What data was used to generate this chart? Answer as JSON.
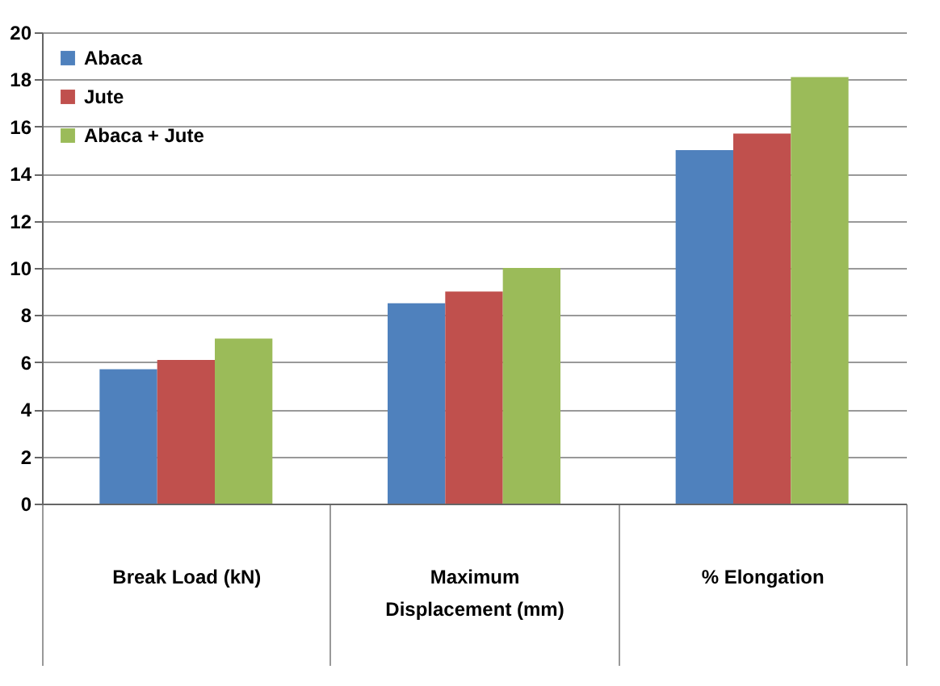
{
  "chart_data": {
    "type": "bar",
    "categories": [
      "Break Load (kN)",
      "Maximum Displacement (mm)",
      "% Elongation"
    ],
    "series": [
      {
        "name": "Abaca",
        "color": "#4f81bd",
        "values": [
          5.7,
          8.5,
          15.0
        ]
      },
      {
        "name": "Jute",
        "color": "#c0504d",
        "values": [
          6.1,
          9.0,
          15.7
        ]
      },
      {
        "name": "Abaca + Jute",
        "color": "#9bbb59",
        "values": [
          7.0,
          10.0,
          18.1
        ]
      }
    ],
    "ylim": [
      0,
      20
    ],
    "yticks": [
      0,
      2,
      4,
      6,
      8,
      10,
      12,
      14,
      16,
      18,
      20
    ],
    "grid": "y",
    "legend": "top left"
  }
}
